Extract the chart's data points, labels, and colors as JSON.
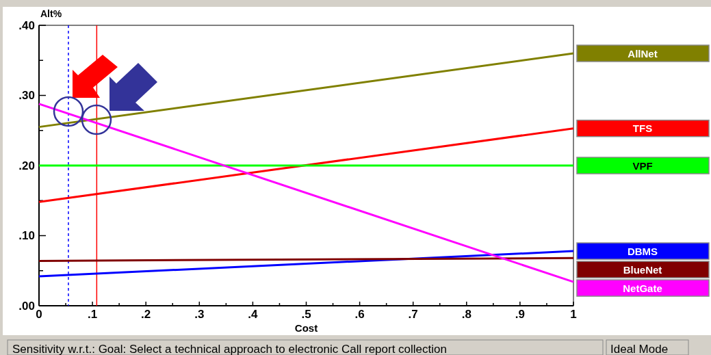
{
  "chart_data": {
    "type": "line",
    "xlabel": "Cost",
    "ylabel": "Alt%",
    "xlim": [
      0,
      1
    ],
    "ylim": [
      0,
      0.4
    ],
    "xticks": [
      {
        "value": 0,
        "label": "0"
      },
      {
        "value": 0.05,
        "label": null
      },
      {
        "value": 0.1,
        "label": ".1"
      },
      {
        "value": 0.15,
        "label": null
      },
      {
        "value": 0.2,
        "label": ".2"
      },
      {
        "value": 0.25,
        "label": null
      },
      {
        "value": 0.3,
        "label": ".3"
      },
      {
        "value": 0.35,
        "label": null
      },
      {
        "value": 0.4,
        "label": ".4"
      },
      {
        "value": 0.45,
        "label": null
      },
      {
        "value": 0.5,
        "label": ".5"
      },
      {
        "value": 0.55,
        "label": null
      },
      {
        "value": 0.6,
        "label": ".6"
      },
      {
        "value": 0.65,
        "label": null
      },
      {
        "value": 0.7,
        "label": ".7"
      },
      {
        "value": 0.75,
        "label": null
      },
      {
        "value": 0.8,
        "label": ".8"
      },
      {
        "value": 0.85,
        "label": null
      },
      {
        "value": 0.9,
        "label": ".9"
      },
      {
        "value": 0.95,
        "label": null
      },
      {
        "value": 1,
        "label": "1"
      }
    ],
    "yticks": [
      {
        "value": 0,
        "label": ".00"
      },
      {
        "value": 0.05,
        "label": null
      },
      {
        "value": 0.1,
        "label": ".10"
      },
      {
        "value": 0.15,
        "label": null
      },
      {
        "value": 0.2,
        "label": ".20"
      },
      {
        "value": 0.25,
        "label": null
      },
      {
        "value": 0.3,
        "label": ".30"
      },
      {
        "value": 0.35,
        "label": null
      },
      {
        "value": 0.4,
        "label": ".40"
      }
    ],
    "x": [
      0,
      1
    ],
    "series": [
      {
        "name": "AllNet",
        "color": "#808000",
        "values": [
          0.255,
          0.36
        ]
      },
      {
        "name": "TFS",
        "color": "#ff0000",
        "values": [
          0.148,
          0.253
        ]
      },
      {
        "name": "VPF",
        "color": "#00ff00",
        "values": [
          0.2,
          0.2
        ]
      },
      {
        "name": "DBMS",
        "color": "#0000ff",
        "values": [
          0.042,
          0.078
        ]
      },
      {
        "name": "BlueNet",
        "color": "#800000",
        "values": [
          0.064,
          0.068
        ]
      },
      {
        "name": "NetGate",
        "color": "#ff00ff",
        "values": [
          0.288,
          0.034
        ]
      }
    ],
    "ref_lines": [
      {
        "axis": "x",
        "value": 0.055,
        "color": "#0000ff",
        "line_style": "dashed"
      },
      {
        "axis": "x",
        "value": 0.108,
        "color": "#ff0000",
        "line_style": "solid"
      }
    ],
    "legend": "right",
    "grid": false,
    "annotations": [
      "Sensitivity w.r.t.: Goal: Select a technical approach to electronic Call report collection",
      "Ideal Mode"
    ]
  }
}
